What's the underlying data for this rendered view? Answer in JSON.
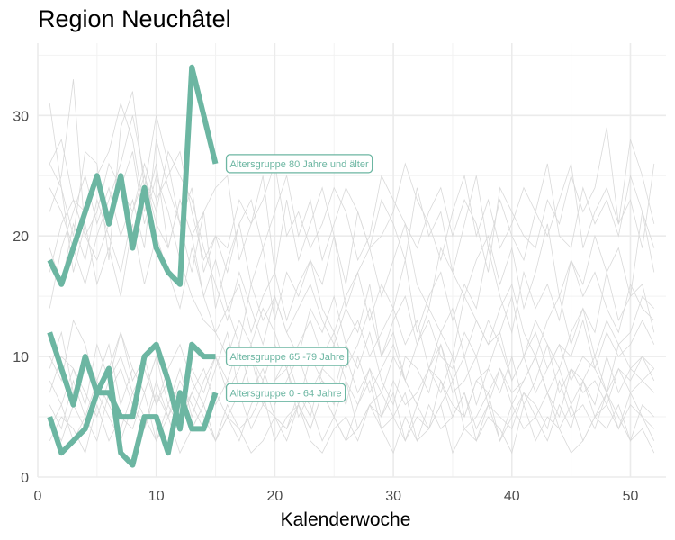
{
  "chart_data": {
    "type": "line",
    "title": "Region Neuchâtel",
    "xlabel": "Kalenderwoche",
    "ylabel": "",
    "xlim": [
      0,
      53
    ],
    "ylim": [
      0,
      36
    ],
    "x_ticks": [
      0,
      10,
      20,
      30,
      40,
      50
    ],
    "y_ticks": [
      0,
      10,
      20,
      30
    ],
    "grid": true,
    "highlight_color": "#6cb6a2",
    "background_color": "#d9d9d9",
    "highlight_series": [
      {
        "name": "Altersgruppe 80 Jahre und älter",
        "x": [
          1,
          2,
          3,
          4,
          5,
          6,
          7,
          8,
          9,
          10,
          11,
          12,
          13,
          14,
          15
        ],
        "values": [
          18,
          16,
          19,
          22,
          25,
          21,
          25,
          19,
          24,
          19,
          17,
          16,
          34,
          30,
          26
        ]
      },
      {
        "name": "Altersgruppe 65 -79 Jahre",
        "x": [
          1,
          2,
          3,
          4,
          5,
          6,
          7,
          8,
          9,
          10,
          11,
          12,
          13,
          14,
          15
        ],
        "values": [
          12,
          9,
          6,
          10,
          7,
          7,
          5,
          5,
          10,
          11,
          8,
          4,
          11,
          10,
          10
        ]
      },
      {
        "name": "Altersgruppe 0 - 64 Jahre",
        "x": [
          1,
          2,
          3,
          4,
          5,
          6,
          7,
          8,
          9,
          10,
          11,
          12,
          13,
          14,
          15
        ],
        "values": [
          5,
          2,
          3,
          4,
          7,
          9,
          2,
          1,
          5,
          5,
          2,
          7,
          4,
          4,
          7
        ]
      }
    ],
    "background_series": [
      [
        31,
        24,
        20,
        27,
        26,
        18,
        29,
        32,
        24,
        30,
        26,
        21,
        24,
        17,
        20,
        19,
        23,
        21,
        25,
        17,
        23,
        18,
        21,
        24,
        20,
        16,
        22,
        19,
        23,
        21,
        18,
        24,
        20,
        22,
        17,
        21,
        25,
        19,
        23,
        20,
        18,
        22,
        26,
        20,
        19,
        24,
        21,
        23,
        20,
        25,
        22,
        19
      ],
      [
        26,
        28,
        23,
        22,
        25,
        27,
        31,
        28,
        22,
        26,
        19,
        23,
        20,
        22,
        24,
        25,
        18,
        21,
        23,
        26,
        20,
        22,
        19,
        21,
        24,
        22,
        18,
        20,
        25,
        23,
        21,
        19,
        22,
        24,
        20,
        23,
        21,
        17,
        24,
        22,
        20,
        19,
        23,
        21,
        25,
        22,
        24,
        29,
        21,
        23,
        19,
        26
      ],
      [
        22,
        25,
        33,
        20,
        18,
        21,
        24,
        22,
        26,
        23,
        25,
        27,
        22,
        18,
        20,
        17,
        21,
        23,
        19,
        22,
        25,
        20,
        23,
        18,
        21,
        24,
        22,
        19,
        20,
        22,
        26,
        23,
        21,
        18,
        22,
        25,
        20,
        23,
        19,
        21,
        24,
        22,
        20,
        23,
        26,
        19,
        22,
        24,
        21,
        28,
        25,
        21
      ],
      [
        14,
        19,
        22,
        25,
        21,
        24,
        20,
        23,
        19,
        28,
        24,
        21,
        17,
        22,
        14,
        18,
        21,
        16,
        19,
        13,
        17,
        15,
        18,
        16,
        20,
        14,
        17,
        19,
        15,
        18,
        21,
        16,
        14,
        19,
        17,
        15,
        18,
        20,
        16,
        19,
        14,
        17,
        21,
        15,
        18,
        16,
        20,
        17,
        19,
        15,
        22,
        17
      ],
      [
        19,
        16,
        21,
        18,
        23,
        20,
        17,
        22,
        25,
        21,
        19,
        23,
        20,
        15,
        18,
        14,
        16,
        12,
        15,
        17,
        13,
        16,
        18,
        14,
        12,
        15,
        17,
        13,
        16,
        14,
        18,
        12,
        15,
        17,
        13,
        16,
        14,
        19,
        15,
        12,
        17,
        14,
        16,
        13,
        18,
        15,
        17,
        14,
        12,
        16,
        14,
        13
      ],
      [
        24,
        22,
        19,
        16,
        20,
        23,
        26,
        30,
        25,
        22,
        27,
        25,
        23,
        19,
        16,
        13,
        17,
        14,
        11,
        15,
        12,
        14,
        16,
        13,
        11,
        14,
        12,
        16,
        10,
        13,
        15,
        11,
        14,
        12,
        10,
        15,
        13,
        11,
        14,
        16,
        12,
        10,
        13,
        15,
        11,
        14,
        12,
        17,
        13,
        15,
        16,
        12
      ],
      [
        17,
        21,
        23,
        20,
        22,
        26,
        24,
        27,
        21,
        25,
        22,
        18,
        15,
        13,
        12,
        14,
        11,
        16,
        13,
        15,
        12,
        10,
        14,
        12,
        15,
        11,
        13,
        10,
        12,
        14,
        11,
        13,
        9,
        12,
        14,
        10,
        13,
        11,
        12,
        15,
        10,
        13,
        11,
        9,
        12,
        14,
        10,
        13,
        11,
        12,
        15,
        14
      ],
      [
        26,
        24,
        17,
        21,
        16,
        19,
        15,
        21,
        16,
        20,
        17,
        14,
        19,
        15,
        12,
        10,
        13,
        11,
        14,
        12,
        9,
        11,
        13,
        10,
        12,
        9,
        11,
        14,
        10,
        12,
        8,
        11,
        13,
        10,
        9,
        12,
        10,
        13,
        11,
        8,
        10,
        12,
        9,
        11,
        10,
        13,
        9,
        12,
        10,
        11,
        13,
        11
      ],
      [
        9,
        12,
        7,
        10,
        8,
        11,
        6,
        9,
        7,
        10,
        8,
        6,
        9,
        7,
        10,
        8,
        11,
        7,
        9,
        6,
        8,
        10,
        7,
        9,
        11,
        8,
        6,
        9,
        7,
        10,
        8,
        6,
        9,
        11,
        7,
        8,
        10,
        6,
        9,
        7,
        8,
        10,
        7,
        9,
        6,
        8,
        10,
        7,
        9,
        8,
        10,
        9
      ],
      [
        7,
        10,
        9,
        6,
        11,
        8,
        12,
        9,
        7,
        10,
        6,
        9,
        5,
        8,
        10,
        7,
        9,
        11,
        6,
        8,
        10,
        7,
        5,
        9,
        8,
        6,
        10,
        7,
        9,
        11,
        8,
        6,
        9,
        7,
        10,
        5,
        8,
        9,
        7,
        10,
        6,
        8,
        11,
        7,
        9,
        8,
        6,
        10,
        7,
        9,
        8,
        7
      ],
      [
        10,
        8,
        13,
        11,
        7,
        9,
        12,
        8,
        10,
        6,
        9,
        11,
        8,
        6,
        9,
        12,
        7,
        10,
        8,
        11,
        9,
        6,
        10,
        8,
        7,
        11,
        9,
        12,
        8,
        6,
        10,
        9,
        7,
        11,
        8,
        10,
        6,
        9,
        12,
        8,
        10,
        7,
        9,
        11,
        8,
        10,
        9,
        7,
        11,
        9,
        10,
        8
      ],
      [
        5,
        3,
        6,
        4,
        7,
        5,
        3,
        6,
        4,
        8,
        5,
        7,
        4,
        6,
        3,
        5,
        7,
        4,
        6,
        5,
        3,
        6,
        4,
        7,
        5,
        3,
        6,
        8,
        4,
        5,
        7,
        3,
        6,
        4,
        5,
        7,
        3,
        6,
        5,
        4,
        7,
        5,
        3,
        6,
        4,
        8,
        5,
        6,
        4,
        7,
        5,
        3
      ],
      [
        4,
        6,
        3,
        5,
        8,
        6,
        4,
        7,
        5,
        3,
        6,
        4,
        7,
        5,
        3,
        6,
        4,
        5,
        7,
        3,
        5,
        6,
        4,
        7,
        5,
        3,
        4,
        6,
        5,
        7,
        3,
        5,
        4,
        6,
        8,
        4,
        5,
        7,
        3,
        6,
        4,
        5,
        7,
        4,
        6,
        3,
        5,
        7,
        4,
        6,
        5,
        4
      ],
      [
        6,
        4,
        8,
        5,
        3,
        7,
        9,
        6,
        4,
        7,
        5,
        8,
        6,
        4,
        7,
        5,
        3,
        6,
        8,
        5,
        4,
        7,
        6,
        3,
        5,
        8,
        4,
        6,
        7,
        5,
        3,
        6,
        4,
        8,
        5,
        7,
        4,
        6,
        3,
        5,
        7,
        6,
        4,
        8,
        5,
        6,
        4,
        7,
        5,
        3,
        6,
        5
      ],
      [
        3,
        5,
        4,
        2,
        6,
        3,
        5,
        4,
        7,
        3,
        5,
        2,
        4,
        6,
        3,
        5,
        4,
        2,
        3,
        5,
        4,
        6,
        3,
        2,
        4,
        5,
        3,
        6,
        4,
        2,
        5,
        3,
        4,
        6,
        2,
        4,
        3,
        5,
        4,
        2,
        6,
        3,
        5,
        4,
        2,
        3,
        5,
        4,
        6,
        3,
        4,
        2
      ],
      [
        8,
        6,
        9,
        7,
        5,
        8,
        10,
        7,
        9,
        6,
        8,
        5,
        7,
        9,
        6,
        8,
        7,
        10,
        6,
        8,
        9,
        5,
        7,
        8,
        6,
        10,
        7,
        9,
        5,
        8,
        6,
        7,
        9,
        8,
        6,
        5,
        8,
        7,
        9,
        6,
        8,
        10,
        7,
        5,
        9,
        7,
        8,
        6,
        9,
        7,
        8,
        9
      ]
    ]
  }
}
